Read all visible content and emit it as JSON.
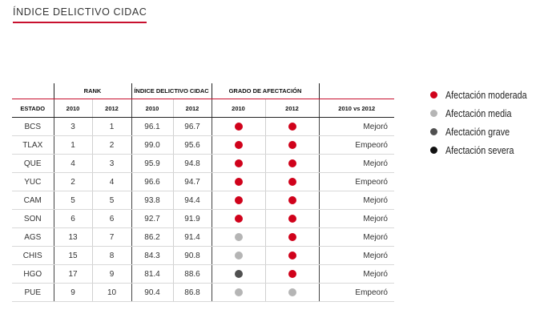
{
  "header": {
    "title": "ÍNDICE DELICTIVO CIDAC"
  },
  "table": {
    "group_headers": {
      "rank": "RANK",
      "index": "ÍNDICE DELICTIVO CIDAC",
      "grade": "GRADO DE AFECTACIÓN"
    },
    "columns": {
      "state": "ESTADO",
      "rank_2010": "2010",
      "rank_2012": "2012",
      "index_2010": "2010",
      "index_2012": "2012",
      "grade_2010": "2010",
      "grade_2012": "2012",
      "change": "2010 vs 2012"
    },
    "rows": [
      {
        "state": "BCS",
        "rank_2010": "3",
        "rank_2012": "1",
        "index_2010": "96.1",
        "index_2012": "96.7",
        "grade_2010": "moderada",
        "grade_2012": "moderada",
        "change": "Mejoró"
      },
      {
        "state": "TLAX",
        "rank_2010": "1",
        "rank_2012": "2",
        "index_2010": "99.0",
        "index_2012": "95.6",
        "grade_2010": "moderada",
        "grade_2012": "moderada",
        "change": "Empeoró"
      },
      {
        "state": "QUE",
        "rank_2010": "4",
        "rank_2012": "3",
        "index_2010": "95.9",
        "index_2012": "94.8",
        "grade_2010": "moderada",
        "grade_2012": "moderada",
        "change": "Mejoró"
      },
      {
        "state": "YUC",
        "rank_2010": "2",
        "rank_2012": "4",
        "index_2010": "96.6",
        "index_2012": "94.7",
        "grade_2010": "moderada",
        "grade_2012": "moderada",
        "change": "Empeoró"
      },
      {
        "state": "CAM",
        "rank_2010": "5",
        "rank_2012": "5",
        "index_2010": "93.8",
        "index_2012": "94.4",
        "grade_2010": "moderada",
        "grade_2012": "moderada",
        "change": "Mejoró"
      },
      {
        "state": "SON",
        "rank_2010": "6",
        "rank_2012": "6",
        "index_2010": "92.7",
        "index_2012": "91.9",
        "grade_2010": "moderada",
        "grade_2012": "moderada",
        "change": "Mejoró"
      },
      {
        "state": "AGS",
        "rank_2010": "13",
        "rank_2012": "7",
        "index_2010": "86.2",
        "index_2012": "91.4",
        "grade_2010": "media",
        "grade_2012": "moderada",
        "change": "Mejoró"
      },
      {
        "state": "CHIS",
        "rank_2010": "15",
        "rank_2012": "8",
        "index_2010": "84.3",
        "index_2012": "90.8",
        "grade_2010": "media",
        "grade_2012": "moderada",
        "change": "Mejoró"
      },
      {
        "state": "HGO",
        "rank_2010": "17",
        "rank_2012": "9",
        "index_2010": "81.4",
        "index_2012": "88.6",
        "grade_2010": "grave",
        "grade_2012": "moderada",
        "change": "Mejoró"
      },
      {
        "state": "PUE",
        "rank_2010": "9",
        "rank_2012": "10",
        "index_2010": "90.4",
        "index_2012": "86.8",
        "grade_2010": "media",
        "grade_2012": "media",
        "change": "Empeoró"
      }
    ]
  },
  "legend": [
    {
      "key": "moderada",
      "label": "Afectación moderada",
      "color": "#d0021b"
    },
    {
      "key": "media",
      "label": "Afectación media",
      "color": "#b5b5b5"
    },
    {
      "key": "grave",
      "label": "Afectación grave",
      "color": "#505050"
    },
    {
      "key": "severa",
      "label": "Afectación severa",
      "color": "#111111"
    }
  ],
  "colors": {
    "accent": "#c8102e"
  }
}
